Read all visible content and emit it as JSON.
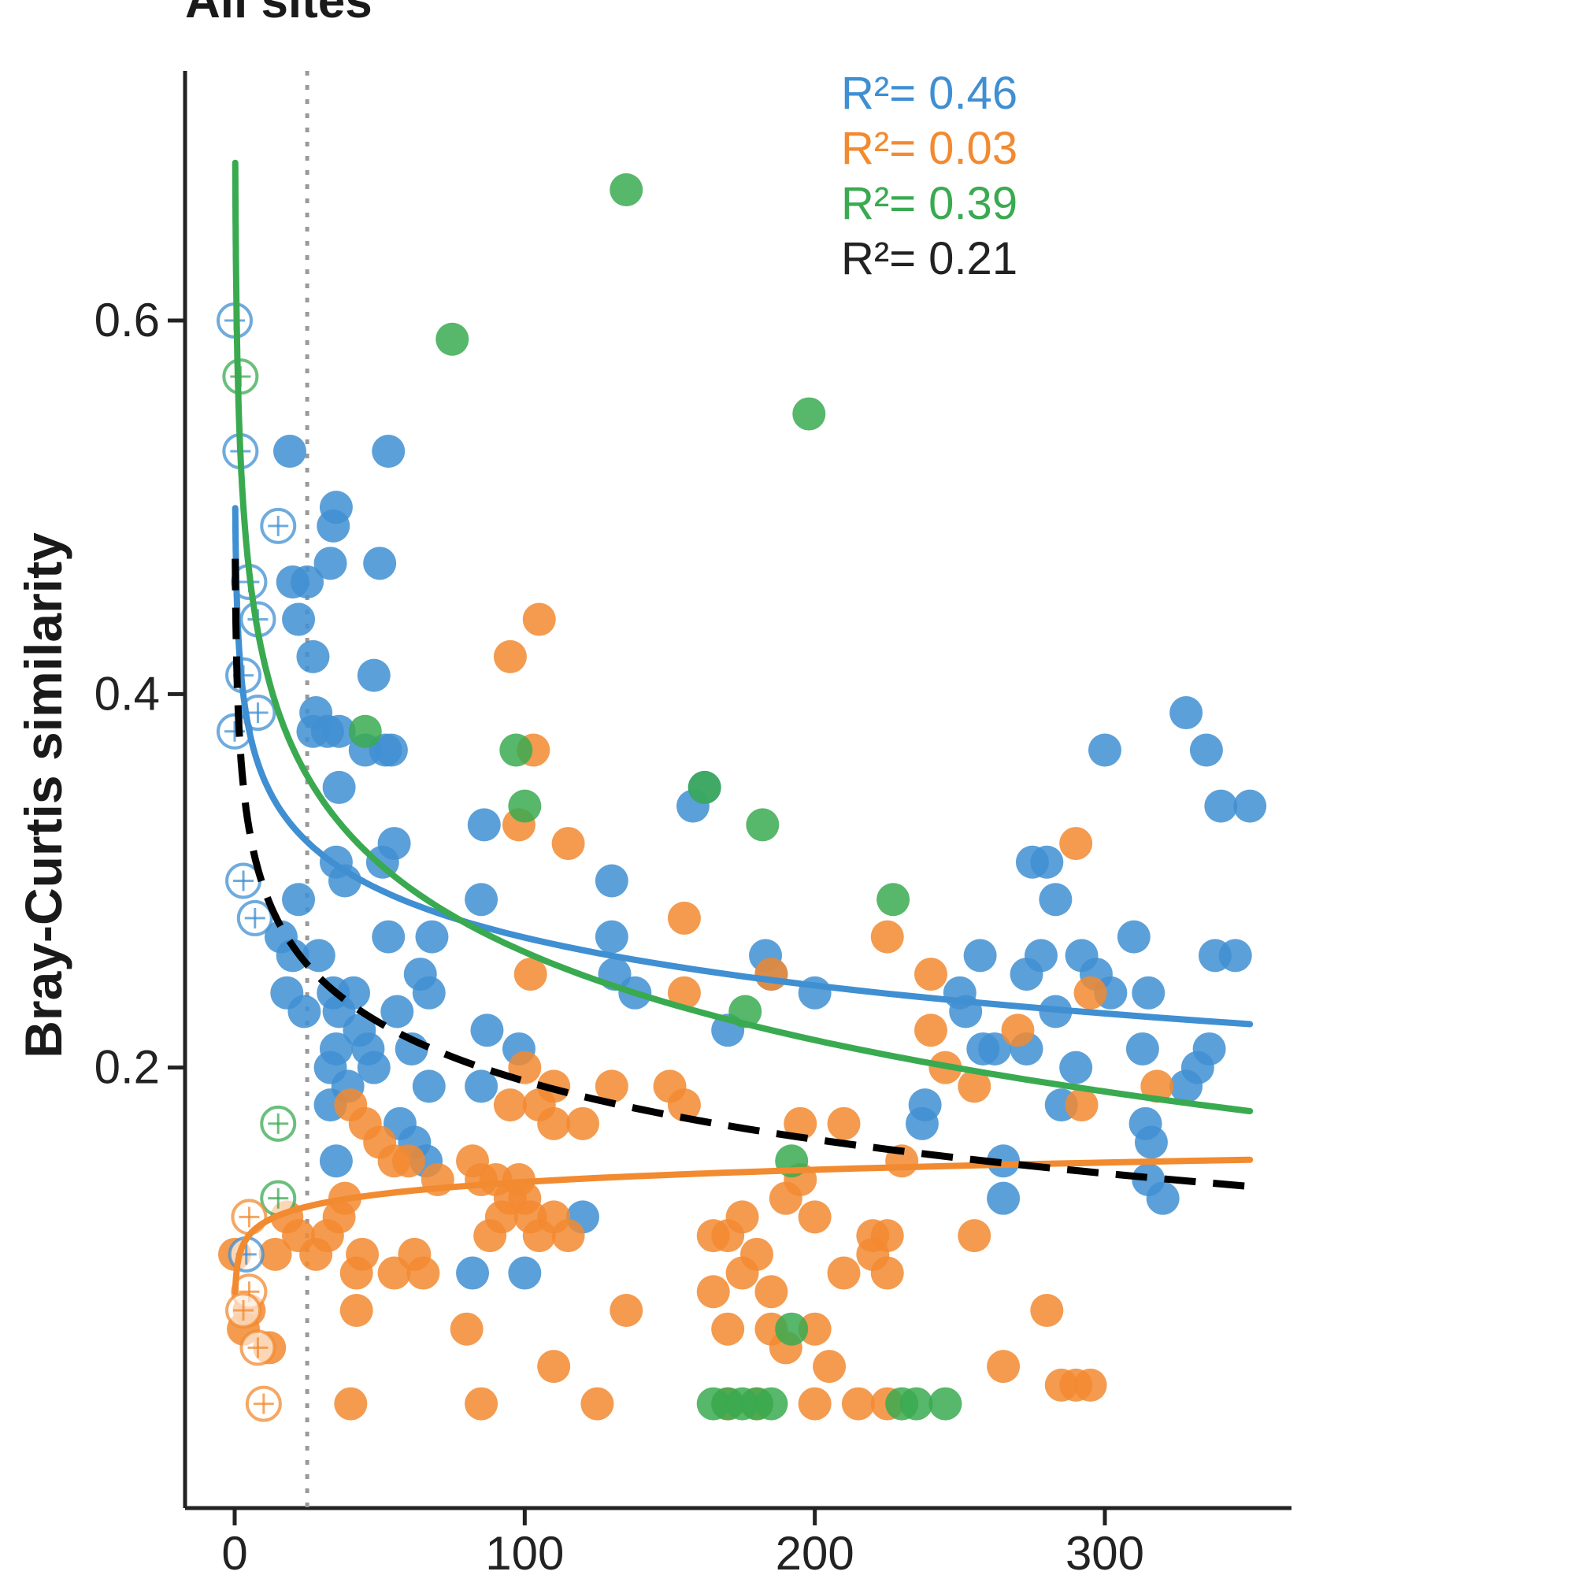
{
  "chart_data": {
    "type": "scatter",
    "title": "All sites",
    "ylabel": "Bray-Curtis similarity",
    "xlabel": "",
    "xlim": [
      -15,
      365
    ],
    "ylim": [
      0.0,
      0.76
    ],
    "x_ticks": [
      0,
      100,
      200,
      300
    ],
    "x_tick_labels": [
      "0",
      "100",
      "200",
      "300"
    ],
    "y_ticks": [
      0.2,
      0.4,
      0.6
    ],
    "y_tick_labels": [
      "0.2",
      "0.4",
      "0.6"
    ],
    "reference_line_x": 25,
    "grid": false,
    "legend": "top-right",
    "colors": {
      "blue": "#3f8fd2",
      "orange": "#f28a30",
      "green": "#3aaa50",
      "black": "#000000",
      "axis": "#222222"
    },
    "r2_labels": [
      {
        "text": "R²= 0.46",
        "color": "#3f8fd2"
      },
      {
        "text": "R²= 0.03",
        "color": "#f28a30"
      },
      {
        "text": "R²= 0.39",
        "color": "#3aaa50"
      },
      {
        "text": "R²= 0.21",
        "color": "#222222"
      }
    ],
    "series": [
      {
        "color": "#3f8fd2",
        "fit": {
          "a": 0.44,
          "b": -0.037
        },
        "points": [
          [
            19,
            0.53
          ],
          [
            35,
            0.5
          ],
          [
            34,
            0.49
          ],
          [
            53,
            0.53
          ],
          [
            20,
            0.46
          ],
          [
            25,
            0.46
          ],
          [
            33,
            0.47
          ],
          [
            50,
            0.47
          ],
          [
            22,
            0.44
          ],
          [
            27,
            0.42
          ],
          [
            48,
            0.41
          ],
          [
            28,
            0.39
          ],
          [
            32,
            0.38
          ],
          [
            27,
            0.38
          ],
          [
            36,
            0.38
          ],
          [
            45,
            0.37
          ],
          [
            52,
            0.37
          ],
          [
            54,
            0.37
          ],
          [
            36,
            0.35
          ],
          [
            55,
            0.32
          ],
          [
            51,
            0.31
          ],
          [
            35,
            0.31
          ],
          [
            38,
            0.3
          ],
          [
            22,
            0.29
          ],
          [
            16,
            0.27
          ],
          [
            20,
            0.26
          ],
          [
            29,
            0.26
          ],
          [
            41,
            0.24
          ],
          [
            53,
            0.27
          ],
          [
            68,
            0.27
          ],
          [
            64,
            0.25
          ],
          [
            67,
            0.24
          ],
          [
            18,
            0.24
          ],
          [
            24,
            0.23
          ],
          [
            34,
            0.24
          ],
          [
            36,
            0.23
          ],
          [
            43,
            0.22
          ],
          [
            46,
            0.21
          ],
          [
            56,
            0.23
          ],
          [
            61,
            0.21
          ],
          [
            35,
            0.21
          ],
          [
            33,
            0.2
          ],
          [
            39,
            0.19
          ],
          [
            48,
            0.2
          ],
          [
            33,
            0.18
          ],
          [
            57,
            0.17
          ],
          [
            62,
            0.16
          ],
          [
            66,
            0.15
          ],
          [
            35,
            0.15
          ],
          [
            86,
            0.33
          ],
          [
            85,
            0.29
          ],
          [
            87,
            0.22
          ],
          [
            98,
            0.21
          ],
          [
            67,
            0.19
          ],
          [
            85,
            0.19
          ],
          [
            130,
            0.3
          ],
          [
            130,
            0.27
          ],
          [
            131,
            0.25
          ],
          [
            138,
            0.24
          ],
          [
            158,
            0.34
          ],
          [
            162,
            0.35
          ],
          [
            170,
            0.22
          ],
          [
            183,
            0.26
          ],
          [
            185,
            0.25
          ],
          [
            200,
            0.24
          ],
          [
            238,
            0.18
          ],
          [
            237,
            0.17
          ],
          [
            250,
            0.24
          ],
          [
            252,
            0.23
          ],
          [
            257,
            0.26
          ],
          [
            258,
            0.21
          ],
          [
            262,
            0.21
          ],
          [
            265,
            0.15
          ],
          [
            265,
            0.13
          ],
          [
            273,
            0.21
          ],
          [
            273,
            0.25
          ],
          [
            278,
            0.26
          ],
          [
            275,
            0.31
          ],
          [
            280,
            0.31
          ],
          [
            283,
            0.29
          ],
          [
            283,
            0.23
          ],
          [
            290,
            0.2
          ],
          [
            285,
            0.18
          ],
          [
            292,
            0.26
          ],
          [
            297,
            0.25
          ],
          [
            302,
            0.24
          ],
          [
            300,
            0.37
          ],
          [
            310,
            0.27
          ],
          [
            315,
            0.24
          ],
          [
            313,
            0.21
          ],
          [
            314,
            0.17
          ],
          [
            316,
            0.16
          ],
          [
            315,
            0.14
          ],
          [
            320,
            0.13
          ],
          [
            328,
            0.19
          ],
          [
            332,
            0.2
          ],
          [
            336,
            0.21
          ],
          [
            340,
            0.34
          ],
          [
            328,
            0.39
          ],
          [
            335,
            0.37
          ],
          [
            350,
            0.34
          ],
          [
            338,
            0.26
          ],
          [
            345,
            0.26
          ],
          [
            120,
            0.12
          ],
          [
            82,
            0.09
          ],
          [
            100,
            0.09
          ]
        ]
      },
      {
        "color": "#f28a30",
        "fit": {
          "a": 0.095,
          "b": 0.0095
        },
        "points": [
          [
            105,
            0.44
          ],
          [
            95,
            0.42
          ],
          [
            103,
            0.37
          ],
          [
            98,
            0.33
          ],
          [
            115,
            0.32
          ],
          [
            155,
            0.28
          ],
          [
            102,
            0.25
          ],
          [
            155,
            0.24
          ],
          [
            185,
            0.25
          ],
          [
            225,
            0.27
          ],
          [
            240,
            0.25
          ],
          [
            240,
            0.22
          ],
          [
            245,
            0.2
          ],
          [
            255,
            0.19
          ],
          [
            270,
            0.22
          ],
          [
            290,
            0.32
          ],
          [
            295,
            0.24
          ],
          [
            292,
            0.18
          ],
          [
            318,
            0.19
          ],
          [
            150,
            0.19
          ],
          [
            155,
            0.18
          ],
          [
            130,
            0.19
          ],
          [
            110,
            0.19
          ],
          [
            105,
            0.18
          ],
          [
            100,
            0.2
          ],
          [
            95,
            0.18
          ],
          [
            110,
            0.17
          ],
          [
            120,
            0.17
          ],
          [
            40,
            0.18
          ],
          [
            45,
            0.17
          ],
          [
            50,
            0.16
          ],
          [
            55,
            0.15
          ],
          [
            60,
            0.15
          ],
          [
            70,
            0.14
          ],
          [
            82,
            0.15
          ],
          [
            85,
            0.14
          ],
          [
            90,
            0.14
          ],
          [
            98,
            0.14
          ],
          [
            100,
            0.13
          ],
          [
            102,
            0.12
          ],
          [
            105,
            0.11
          ],
          [
            110,
            0.12
          ],
          [
            115,
            0.11
          ],
          [
            95,
            0.13
          ],
          [
            92,
            0.12
          ],
          [
            88,
            0.11
          ],
          [
            38,
            0.13
          ],
          [
            36,
            0.12
          ],
          [
            44,
            0.1
          ],
          [
            42,
            0.09
          ],
          [
            55,
            0.09
          ],
          [
            62,
            0.1
          ],
          [
            65,
            0.09
          ],
          [
            42,
            0.07
          ],
          [
            80,
            0.06
          ],
          [
            40,
            0.02
          ],
          [
            85,
            0.02
          ],
          [
            125,
            0.02
          ],
          [
            110,
            0.04
          ],
          [
            135,
            0.07
          ],
          [
            165,
            0.11
          ],
          [
            170,
            0.11
          ],
          [
            175,
            0.12
          ],
          [
            165,
            0.08
          ],
          [
            170,
            0.06
          ],
          [
            175,
            0.09
          ],
          [
            180,
            0.1
          ],
          [
            185,
            0.08
          ],
          [
            190,
            0.13
          ],
          [
            195,
            0.14
          ],
          [
            200,
            0.12
          ],
          [
            185,
            0.06
          ],
          [
            190,
            0.05
          ],
          [
            200,
            0.06
          ],
          [
            205,
            0.04
          ],
          [
            210,
            0.09
          ],
          [
            220,
            0.1
          ],
          [
            220,
            0.11
          ],
          [
            225,
            0.11
          ],
          [
            225,
            0.09
          ],
          [
            215,
            0.02
          ],
          [
            225,
            0.02
          ],
          [
            255,
            0.11
          ],
          [
            265,
            0.04
          ],
          [
            280,
            0.07
          ],
          [
            285,
            0.03
          ],
          [
            290,
            0.03
          ],
          [
            295,
            0.03
          ],
          [
            230,
            0.15
          ],
          [
            210,
            0.17
          ],
          [
            195,
            0.17
          ],
          [
            170,
            0.02
          ],
          [
            180,
            0.02
          ],
          [
            200,
            0.02
          ],
          [
            0,
            0.1
          ],
          [
            12,
            0.05
          ],
          [
            5,
            0.07
          ],
          [
            3,
            0.06
          ],
          [
            14,
            0.1
          ],
          [
            18,
            0.12
          ],
          [
            22,
            0.11
          ],
          [
            28,
            0.1
          ],
          [
            32,
            0.11
          ]
        ]
      },
      {
        "color": "#3aaa50",
        "fit": {
          "a": 0.575,
          "b": -0.068
        },
        "points": [
          [
            135,
            0.67
          ],
          [
            75,
            0.59
          ],
          [
            198,
            0.55
          ],
          [
            45,
            0.38
          ],
          [
            97,
            0.37
          ],
          [
            100,
            0.34
          ],
          [
            162,
            0.35
          ],
          [
            182,
            0.33
          ],
          [
            227,
            0.29
          ],
          [
            176,
            0.23
          ],
          [
            192,
            0.15
          ],
          [
            192,
            0.06
          ],
          [
            165,
            0.02
          ],
          [
            170,
            0.02
          ],
          [
            175,
            0.02
          ],
          [
            180,
            0.02
          ],
          [
            185,
            0.02
          ],
          [
            230,
            0.02
          ],
          [
            235,
            0.02
          ],
          [
            245,
            0.02
          ]
        ]
      }
    ],
    "mean_fit": {
      "a": 0.4,
      "b": -0.045
    },
    "hollow_points": [
      {
        "x": 0,
        "y": 0.6,
        "color": "#3f8fd2"
      },
      {
        "x": 2,
        "y": 0.57,
        "color": "#3aaa50"
      },
      {
        "x": 2,
        "y": 0.53,
        "color": "#3f8fd2"
      },
      {
        "x": 15,
        "y": 0.49,
        "color": "#3f8fd2"
      },
      {
        "x": 5,
        "y": 0.46,
        "color": "#3f8fd2"
      },
      {
        "x": 8,
        "y": 0.44,
        "color": "#3f8fd2"
      },
      {
        "x": 3,
        "y": 0.41,
        "color": "#3f8fd2"
      },
      {
        "x": 8,
        "y": 0.39,
        "color": "#3f8fd2"
      },
      {
        "x": 0,
        "y": 0.38,
        "color": "#3f8fd2"
      },
      {
        "x": 3,
        "y": 0.3,
        "color": "#3f8fd2"
      },
      {
        "x": 7,
        "y": 0.28,
        "color": "#3f8fd2"
      },
      {
        "x": 15,
        "y": 0.17,
        "color": "#3aaa50"
      },
      {
        "x": 15,
        "y": 0.13,
        "color": "#3aaa50"
      },
      {
        "x": 4,
        "y": 0.1,
        "color": "#3f8fd2"
      },
      {
        "x": 5,
        "y": 0.12,
        "color": "#f28a30"
      },
      {
        "x": 5,
        "y": 0.08,
        "color": "#f28a30"
      },
      {
        "x": 3,
        "y": 0.07,
        "color": "#f28a30"
      },
      {
        "x": 8,
        "y": 0.05,
        "color": "#f28a30"
      },
      {
        "x": 10,
        "y": 0.02,
        "color": "#f28a30"
      }
    ]
  }
}
